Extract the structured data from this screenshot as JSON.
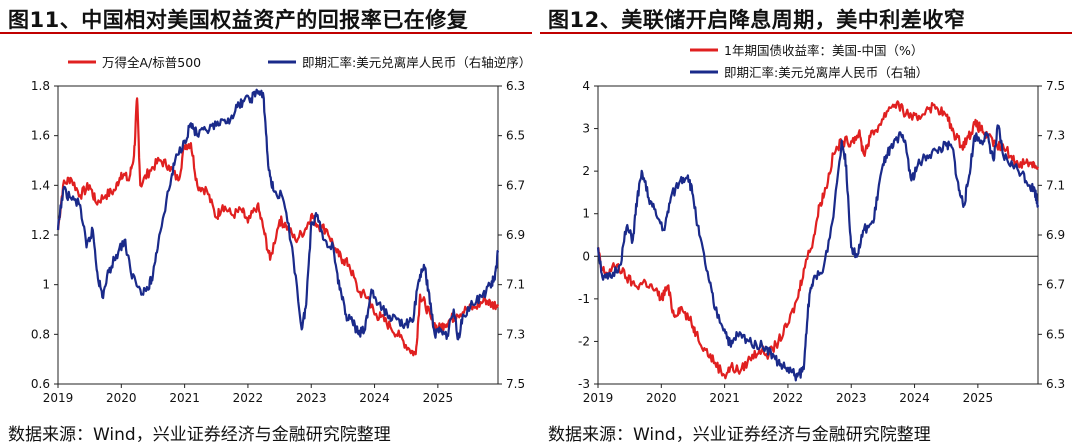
{
  "colors": {
    "red": "#e02020",
    "blue": "#1a2a8a",
    "title_rule": "#c00000"
  },
  "chart_data": [
    {
      "type": "line",
      "title": "图11、中国相对美国权益资产的回报率已在修复",
      "source": "数据来源：Wind，兴业证券经济与金融研究院整理",
      "x_ticks": [
        "2019",
        "2020",
        "2021",
        "2022",
        "2023",
        "2024",
        "2025"
      ],
      "x_range": [
        2019.0,
        2025.95
      ],
      "left_axis": {
        "ticks": [
          "0.6",
          "0.8",
          "1",
          "1.2",
          "1.4",
          "1.6",
          "1.8"
        ],
        "min": 0.6,
        "max": 1.8
      },
      "right_axis": {
        "ticks": [
          "6.3",
          "6.5",
          "6.7",
          "6.9",
          "7.1",
          "7.3",
          "7.5"
        ],
        "min": 6.3,
        "max": 7.5,
        "inverted": true
      },
      "legend_placement": "top",
      "series": [
        {
          "name": "万得全A/标普500",
          "color": "#e02020",
          "axis": "left",
          "points": [
            [
              2019.0,
              1.22
            ],
            [
              2019.08,
              1.4
            ],
            [
              2019.2,
              1.43
            ],
            [
              2019.35,
              1.36
            ],
            [
              2019.5,
              1.4
            ],
            [
              2019.6,
              1.33
            ],
            [
              2019.75,
              1.36
            ],
            [
              2019.9,
              1.38
            ],
            [
              2020.0,
              1.45
            ],
            [
              2020.12,
              1.42
            ],
            [
              2020.2,
              1.52
            ],
            [
              2020.25,
              1.75
            ],
            [
              2020.3,
              1.4
            ],
            [
              2020.45,
              1.46
            ],
            [
              2020.6,
              1.5
            ],
            [
              2020.75,
              1.48
            ],
            [
              2020.9,
              1.42
            ],
            [
              2021.0,
              1.56
            ],
            [
              2021.1,
              1.57
            ],
            [
              2021.2,
              1.4
            ],
            [
              2021.35,
              1.38
            ],
            [
              2021.5,
              1.27
            ],
            [
              2021.6,
              1.32
            ],
            [
              2021.75,
              1.28
            ],
            [
              2021.9,
              1.3
            ],
            [
              2022.0,
              1.25
            ],
            [
              2022.15,
              1.32
            ],
            [
              2022.25,
              1.22
            ],
            [
              2022.35,
              1.1
            ],
            [
              2022.5,
              1.26
            ],
            [
              2022.6,
              1.24
            ],
            [
              2022.75,
              1.18
            ],
            [
              2022.9,
              1.22
            ],
            [
              2023.0,
              1.28
            ],
            [
              2023.1,
              1.24
            ],
            [
              2023.25,
              1.22
            ],
            [
              2023.4,
              1.13
            ],
            [
              2023.5,
              1.1
            ],
            [
              2023.6,
              1.08
            ],
            [
              2023.75,
              0.97
            ],
            [
              2023.9,
              0.95
            ],
            [
              2024.0,
              0.88
            ],
            [
              2024.1,
              0.87
            ],
            [
              2024.25,
              0.83
            ],
            [
              2024.4,
              0.79
            ],
            [
              2024.55,
              0.74
            ],
            [
              2024.65,
              0.72
            ],
            [
              2024.72,
              0.96
            ],
            [
              2024.8,
              0.92
            ],
            [
              2024.9,
              0.86
            ],
            [
              2025.0,
              0.82
            ],
            [
              2025.1,
              0.84
            ],
            [
              2025.2,
              0.86
            ],
            [
              2025.3,
              0.88
            ],
            [
              2025.45,
              0.9
            ],
            [
              2025.6,
              0.91
            ],
            [
              2025.75,
              0.94
            ],
            [
              2025.85,
              0.92
            ],
            [
              2025.95,
              0.92
            ]
          ]
        },
        {
          "name": "即期汇率:美元兑离岸人民币（右轴逆序）",
          "color": "#1a2a8a",
          "axis": "right",
          "points": [
            [
              2019.0,
              6.88
            ],
            [
              2019.08,
              6.72
            ],
            [
              2019.2,
              6.75
            ],
            [
              2019.35,
              6.78
            ],
            [
              2019.45,
              6.95
            ],
            [
              2019.55,
              6.88
            ],
            [
              2019.62,
              7.05
            ],
            [
              2019.7,
              7.15
            ],
            [
              2019.8,
              7.05
            ],
            [
              2019.92,
              6.98
            ],
            [
              2020.05,
              6.92
            ],
            [
              2020.15,
              7.05
            ],
            [
              2020.3,
              7.12
            ],
            [
              2020.42,
              7.12
            ],
            [
              2020.5,
              7.06
            ],
            [
              2020.6,
              6.9
            ],
            [
              2020.75,
              6.72
            ],
            [
              2020.85,
              6.6
            ],
            [
              2021.0,
              6.52
            ],
            [
              2021.1,
              6.45
            ],
            [
              2021.2,
              6.5
            ],
            [
              2021.35,
              6.48
            ],
            [
              2021.5,
              6.46
            ],
            [
              2021.65,
              6.45
            ],
            [
              2021.8,
              6.4
            ],
            [
              2021.92,
              6.36
            ],
            [
              2022.05,
              6.35
            ],
            [
              2022.15,
              6.32
            ],
            [
              2022.25,
              6.35
            ],
            [
              2022.32,
              6.62
            ],
            [
              2022.4,
              6.72
            ],
            [
              2022.55,
              6.75
            ],
            [
              2022.7,
              6.95
            ],
            [
              2022.85,
              7.28
            ],
            [
              2022.92,
              7.18
            ],
            [
              2023.0,
              6.85
            ],
            [
              2023.1,
              6.82
            ],
            [
              2023.2,
              6.92
            ],
            [
              2023.35,
              6.95
            ],
            [
              2023.45,
              7.12
            ],
            [
              2023.55,
              7.22
            ],
            [
              2023.65,
              7.25
            ],
            [
              2023.75,
              7.3
            ],
            [
              2023.85,
              7.28
            ],
            [
              2023.95,
              7.12
            ],
            [
              2024.05,
              7.18
            ],
            [
              2024.2,
              7.22
            ],
            [
              2024.35,
              7.24
            ],
            [
              2024.5,
              7.26
            ],
            [
              2024.6,
              7.25
            ],
            [
              2024.7,
              7.08
            ],
            [
              2024.78,
              7.02
            ],
            [
              2024.85,
              7.12
            ],
            [
              2024.95,
              7.3
            ],
            [
              2025.05,
              7.28
            ],
            [
              2025.15,
              7.3
            ],
            [
              2025.25,
              7.2
            ],
            [
              2025.32,
              7.32
            ],
            [
              2025.4,
              7.22
            ],
            [
              2025.55,
              7.18
            ],
            [
              2025.7,
              7.15
            ],
            [
              2025.82,
              7.1
            ],
            [
              2025.9,
              7.08
            ],
            [
              2025.95,
              6.97
            ]
          ]
        }
      ]
    },
    {
      "type": "line",
      "title": "图12、美联储开启降息周期，美中利差收窄",
      "source": "数据来源：Wind，兴业证券经济与金融研究院整理",
      "x_ticks": [
        "2019",
        "2020",
        "2021",
        "2022",
        "2023",
        "2024",
        "2025"
      ],
      "x_range": [
        2019.0,
        2025.95
      ],
      "left_axis": {
        "ticks": [
          "-3",
          "-2",
          "-1",
          "0",
          "1",
          "2",
          "3",
          "4"
        ],
        "min": -3,
        "max": 4
      },
      "right_axis": {
        "ticks": [
          "6.3",
          "6.5",
          "6.7",
          "6.9",
          "7.1",
          "7.3",
          "7.5"
        ],
        "min": 6.3,
        "max": 7.5,
        "inverted": false
      },
      "legend_placement": "top",
      "series": [
        {
          "name": "1年期国债收益率：美国-中国（%）",
          "color": "#e02020",
          "axis": "left",
          "points": [
            [
              2019.0,
              0.2
            ],
            [
              2019.05,
              -0.3
            ],
            [
              2019.15,
              -0.4
            ],
            [
              2019.3,
              -0.2
            ],
            [
              2019.45,
              -0.5
            ],
            [
              2019.6,
              -0.7
            ],
            [
              2019.75,
              -0.6
            ],
            [
              2019.9,
              -0.8
            ],
            [
              2020.0,
              -1.0
            ],
            [
              2020.1,
              -0.7
            ],
            [
              2020.2,
              -1.4
            ],
            [
              2020.3,
              -1.2
            ],
            [
              2020.45,
              -1.5
            ],
            [
              2020.55,
              -1.8
            ],
            [
              2020.7,
              -2.2
            ],
            [
              2020.85,
              -2.5
            ],
            [
              2021.0,
              -2.8
            ],
            [
              2021.1,
              -2.6
            ],
            [
              2021.25,
              -2.7
            ],
            [
              2021.4,
              -2.4
            ],
            [
              2021.55,
              -2.2
            ],
            [
              2021.7,
              -2.3
            ],
            [
              2021.85,
              -2.0
            ],
            [
              2022.0,
              -1.6
            ],
            [
              2022.15,
              -1.0
            ],
            [
              2022.25,
              -0.3
            ],
            [
              2022.4,
              0.4
            ],
            [
              2022.5,
              1.2
            ],
            [
              2022.6,
              1.6
            ],
            [
              2022.72,
              2.4
            ],
            [
              2022.85,
              2.7
            ],
            [
              2023.0,
              2.7
            ],
            [
              2023.12,
              2.9
            ],
            [
              2023.2,
              2.4
            ],
            [
              2023.3,
              2.8
            ],
            [
              2023.45,
              3.1
            ],
            [
              2023.6,
              3.5
            ],
            [
              2023.72,
              3.6
            ],
            [
              2023.82,
              3.4
            ],
            [
              2023.95,
              3.3
            ],
            [
              2024.05,
              3.2
            ],
            [
              2024.2,
              3.5
            ],
            [
              2024.35,
              3.5
            ],
            [
              2024.5,
              3.3
            ],
            [
              2024.62,
              2.9
            ],
            [
              2024.75,
              2.6
            ],
            [
              2024.85,
              2.8
            ],
            [
              2024.95,
              3.1
            ],
            [
              2025.05,
              3.0
            ],
            [
              2025.15,
              2.8
            ],
            [
              2025.3,
              2.6
            ],
            [
              2025.45,
              2.5
            ],
            [
              2025.6,
              2.2
            ],
            [
              2025.75,
              2.2
            ],
            [
              2025.85,
              2.2
            ],
            [
              2025.95,
              2.1
            ]
          ]
        },
        {
          "name": "即期汇率:美元兑离岸人民币（右轴）",
          "color": "#1a2a8a",
          "axis": "right",
          "points": [
            [
              2019.0,
              6.85
            ],
            [
              2019.08,
              6.72
            ],
            [
              2019.2,
              6.73
            ],
            [
              2019.35,
              6.78
            ],
            [
              2019.45,
              6.93
            ],
            [
              2019.55,
              6.88
            ],
            [
              2019.62,
              7.05
            ],
            [
              2019.7,
              7.15
            ],
            [
              2019.8,
              7.05
            ],
            [
              2019.92,
              6.98
            ],
            [
              2020.05,
              6.92
            ],
            [
              2020.15,
              7.05
            ],
            [
              2020.3,
              7.12
            ],
            [
              2020.42,
              7.14
            ],
            [
              2020.5,
              7.06
            ],
            [
              2020.6,
              6.9
            ],
            [
              2020.75,
              6.72
            ],
            [
              2020.85,
              6.6
            ],
            [
              2021.0,
              6.52
            ],
            [
              2021.1,
              6.45
            ],
            [
              2021.2,
              6.5
            ],
            [
              2021.35,
              6.48
            ],
            [
              2021.5,
              6.46
            ],
            [
              2021.65,
              6.45
            ],
            [
              2021.8,
              6.4
            ],
            [
              2021.92,
              6.37
            ],
            [
              2022.05,
              6.35
            ],
            [
              2022.15,
              6.33
            ],
            [
              2022.25,
              6.36
            ],
            [
              2022.32,
              6.62
            ],
            [
              2022.4,
              6.72
            ],
            [
              2022.55,
              6.75
            ],
            [
              2022.7,
              6.95
            ],
            [
              2022.85,
              7.28
            ],
            [
              2022.92,
              7.18
            ],
            [
              2023.0,
              6.85
            ],
            [
              2023.1,
              6.82
            ],
            [
              2023.2,
              6.92
            ],
            [
              2023.35,
              6.95
            ],
            [
              2023.45,
              7.12
            ],
            [
              2023.55,
              7.22
            ],
            [
              2023.65,
              7.25
            ],
            [
              2023.75,
              7.3
            ],
            [
              2023.85,
              7.28
            ],
            [
              2023.95,
              7.12
            ],
            [
              2024.05,
              7.18
            ],
            [
              2024.2,
              7.22
            ],
            [
              2024.35,
              7.24
            ],
            [
              2024.5,
              7.26
            ],
            [
              2024.6,
              7.25
            ],
            [
              2024.7,
              7.08
            ],
            [
              2024.78,
              7.02
            ],
            [
              2024.85,
              7.12
            ],
            [
              2024.95,
              7.3
            ],
            [
              2025.05,
              7.28
            ],
            [
              2025.15,
              7.3
            ],
            [
              2025.25,
              7.2
            ],
            [
              2025.32,
              7.34
            ],
            [
              2025.4,
              7.22
            ],
            [
              2025.55,
              7.18
            ],
            [
              2025.7,
              7.15
            ],
            [
              2025.82,
              7.1
            ],
            [
              2025.9,
              7.08
            ],
            [
              2025.95,
              7.02
            ]
          ]
        }
      ]
    }
  ]
}
